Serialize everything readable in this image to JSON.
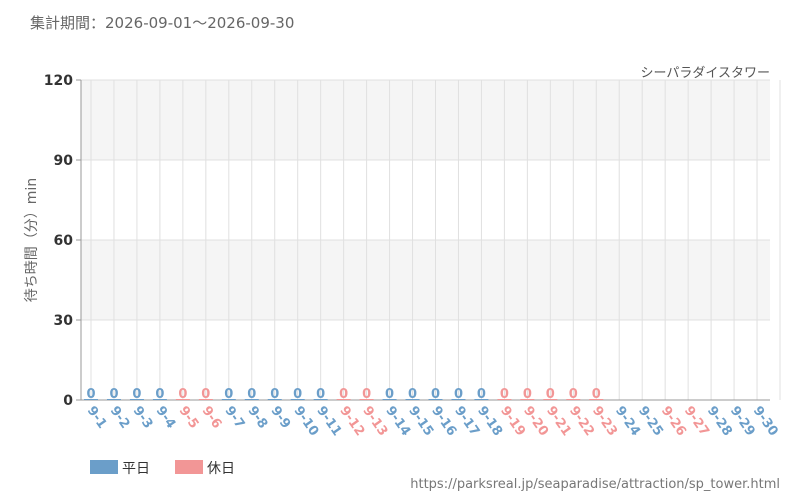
{
  "header": {
    "period_label": "集計期間：",
    "period_start": "2026-09-01",
    "period_sep": "～",
    "period_end": "2026-09-30"
  },
  "footer": {
    "source_url": "https://parksreal.jp/seaparadise/attraction/sp_tower.html"
  },
  "colors": {
    "weekday": "#6b9ec9",
    "holiday": "#f29696",
    "band": "#f5f5f5",
    "grid": "#e0e0e0"
  },
  "chart_data": {
    "type": "bar",
    "title": "シーパラダイスタワー",
    "xlabel": "",
    "ylabel": "待ち時間（分）min",
    "ylim": [
      0,
      120
    ],
    "yticks": [
      0,
      30,
      60,
      90,
      120
    ],
    "grid": true,
    "legend_position": "bottom-left",
    "legend": [
      {
        "key": "weekday",
        "label": "平日"
      },
      {
        "key": "holiday",
        "label": "休日"
      }
    ],
    "categories": [
      "9-1",
      "9-2",
      "9-3",
      "9-4",
      "9-5",
      "9-6",
      "9-7",
      "9-8",
      "9-9",
      "9-10",
      "9-11",
      "9-12",
      "9-13",
      "9-14",
      "9-15",
      "9-16",
      "9-17",
      "9-18",
      "9-19",
      "9-20",
      "9-21",
      "9-22",
      "9-23",
      "9-24",
      "9-25",
      "9-26",
      "9-27",
      "9-28",
      "9-29",
      "9-30"
    ],
    "day_type": [
      "weekday",
      "weekday",
      "weekday",
      "weekday",
      "holiday",
      "holiday",
      "weekday",
      "weekday",
      "weekday",
      "weekday",
      "weekday",
      "holiday",
      "holiday",
      "weekday",
      "weekday",
      "weekday",
      "weekday",
      "weekday",
      "holiday",
      "holiday",
      "holiday",
      "holiday",
      "holiday",
      "weekday",
      "weekday",
      "holiday",
      "holiday",
      "weekday",
      "weekday",
      "weekday"
    ],
    "values": [
      0,
      0,
      0,
      0,
      0,
      0,
      0,
      0,
      0,
      0,
      0,
      0,
      0,
      0,
      0,
      0,
      0,
      0,
      0,
      0,
      0,
      0,
      0,
      null,
      null,
      null,
      null,
      null,
      null,
      null
    ],
    "value_labels": [
      "0",
      "0",
      "0",
      "0",
      "0",
      "0",
      "0",
      "0",
      "0",
      "0",
      "0",
      "0",
      "0",
      "0",
      "0",
      "0",
      "0",
      "0",
      "0",
      "0",
      "0",
      "0",
      "0",
      "",
      "",
      "",
      "",
      "",
      "",
      ""
    ]
  }
}
